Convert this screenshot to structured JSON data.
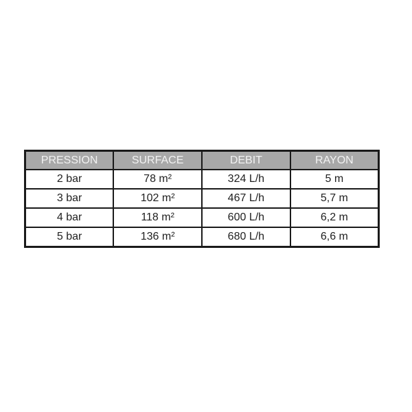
{
  "page": {
    "background_color": "#ffffff"
  },
  "table": {
    "columns": [
      "PRESSION",
      "SURFACE",
      "DEBIT",
      "RAYON"
    ],
    "rows": [
      [
        "2 bar",
        "78 m²",
        "324 L/h",
        "5 m"
      ],
      [
        "3 bar",
        "102 m²",
        "467 L/h",
        "5,7 m"
      ],
      [
        "4 bar",
        "118 m²",
        "600 L/h",
        "6,2 m"
      ],
      [
        "5 bar",
        "136 m²",
        "680 L/h",
        "6,6 m"
      ]
    ],
    "colors": {
      "header_background": "#a8a8a8",
      "header_text": "#f2f2f2",
      "body_background": "#ffffff",
      "body_text": "#1f1f1f",
      "border": "#1a1a1a"
    }
  },
  "chart_data": {
    "type": "table",
    "title": "",
    "columns": [
      "PRESSION",
      "SURFACE",
      "DEBIT",
      "RAYON"
    ],
    "rows": [
      {
        "pression": "2 bar",
        "surface_m2": 78,
        "debit_l_per_h": 324,
        "rayon_m": 5
      },
      {
        "pression": "3 bar",
        "surface_m2": 102,
        "debit_l_per_h": 467,
        "rayon_m": 5.7
      },
      {
        "pression": "4 bar",
        "surface_m2": 118,
        "debit_l_per_h": 600,
        "rayon_m": 6.2
      },
      {
        "pression": "5 bar",
        "surface_m2": 136,
        "debit_l_per_h": 680,
        "rayon_m": 6.6
      }
    ]
  }
}
